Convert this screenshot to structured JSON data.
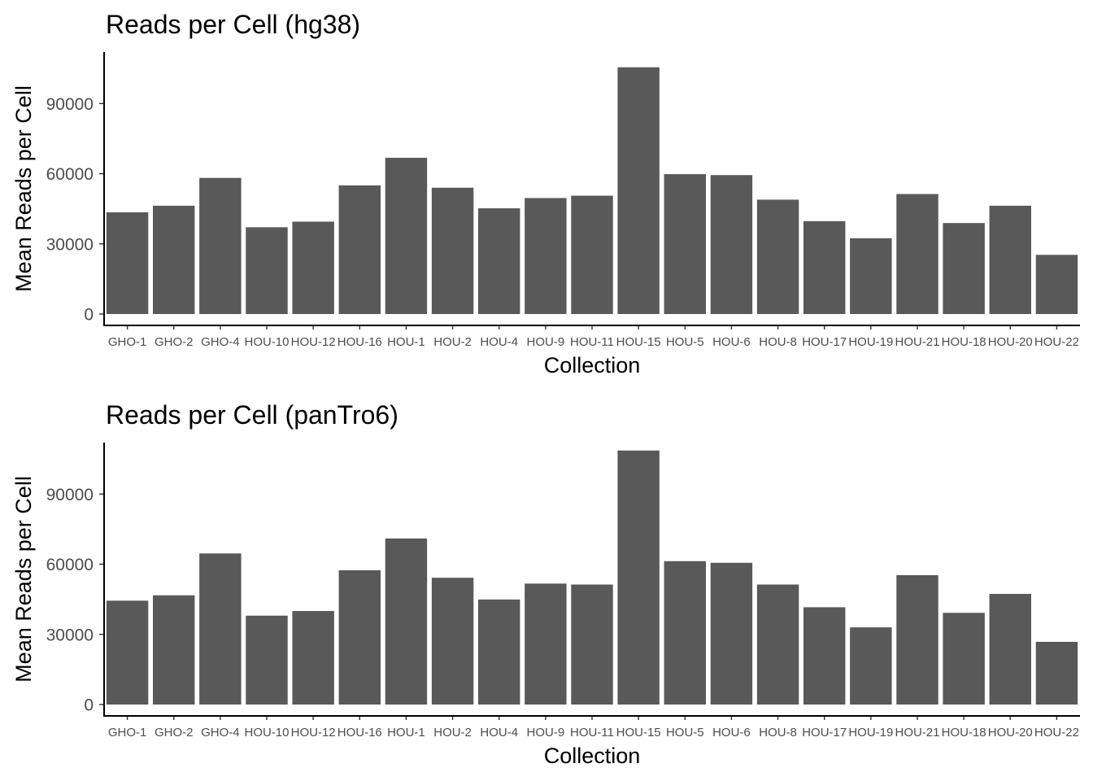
{
  "chart_data": [
    {
      "type": "bar",
      "title": "Reads per Cell (hg38)",
      "xlabel": "Collection",
      "ylabel": "Mean Reads per Cell",
      "ylim": [
        0,
        112000
      ],
      "yticks": [
        0,
        30000,
        60000,
        90000
      ],
      "ytick_labels": [
        "0",
        "30000",
        "60000",
        "90000"
      ],
      "grid": false,
      "bar_color": "#595959",
      "categories": [
        "GHO-1",
        "GHO-2",
        "GHO-4",
        "HOU-10",
        "HOU-12",
        "HOU-16",
        "HOU-1",
        "HOU-2",
        "HOU-4",
        "HOU-9",
        "HOU-11",
        "HOU-15",
        "HOU-5",
        "HOU-6",
        "HOU-8",
        "HOU-17",
        "HOU-19",
        "HOU-21",
        "HOU-18",
        "HOU-20",
        "HOU-22"
      ],
      "values": [
        43500,
        46300,
        58200,
        37100,
        39500,
        55000,
        66800,
        54000,
        45200,
        49600,
        50600,
        105500,
        59800,
        59400,
        48900,
        39700,
        32400,
        51300,
        38900,
        46300,
        25300
      ]
    },
    {
      "type": "bar",
      "title": "Reads per Cell (panTro6)",
      "xlabel": "Collection",
      "ylabel": "Mean Reads per Cell",
      "ylim": [
        0,
        112000
      ],
      "yticks": [
        0,
        30000,
        60000,
        90000
      ],
      "ytick_labels": [
        "0",
        "30000",
        "60000",
        "90000"
      ],
      "grid": false,
      "bar_color": "#595959",
      "categories": [
        "GHO-1",
        "GHO-2",
        "GHO-4",
        "HOU-10",
        "HOU-12",
        "HOU-16",
        "HOU-1",
        "HOU-2",
        "HOU-4",
        "HOU-9",
        "HOU-11",
        "HOU-15",
        "HOU-5",
        "HOU-6",
        "HOU-8",
        "HOU-17",
        "HOU-19",
        "HOU-21",
        "HOU-18",
        "HOU-20",
        "HOU-22"
      ],
      "values": [
        44400,
        46700,
        64600,
        38000,
        40000,
        57400,
        71000,
        54200,
        44900,
        51700,
        51300,
        108600,
        61300,
        60600,
        51300,
        41600,
        33000,
        55300,
        39200,
        47300,
        26800
      ]
    }
  ]
}
